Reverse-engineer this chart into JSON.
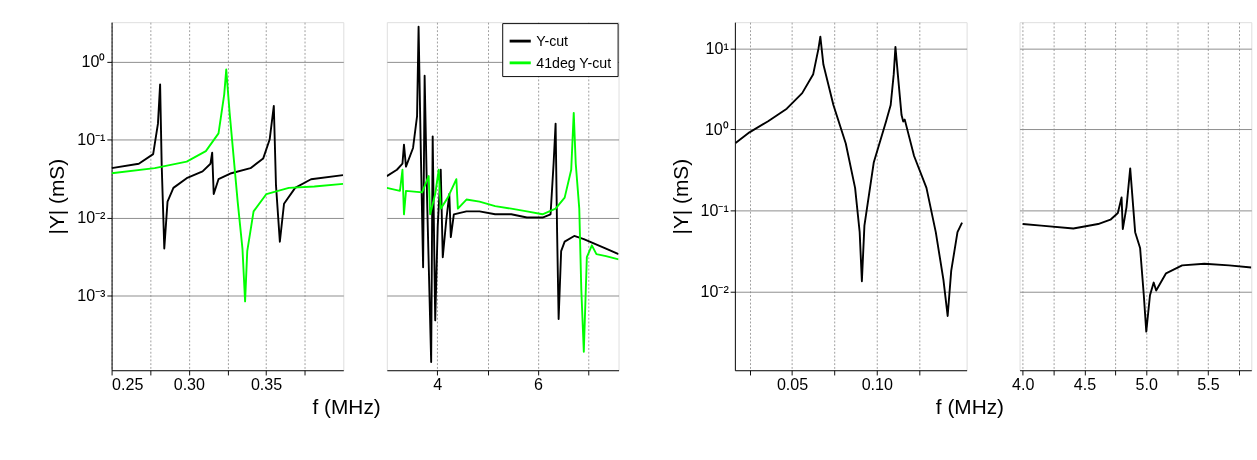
{
  "chart_data": [
    {
      "type": "line",
      "xlabel": "f (MHz)",
      "ylabel": "|Y| (mS)",
      "log": "y",
      "grid": true,
      "xlim": [
        0.25,
        0.4
      ],
      "ylim": [
        0.00011,
        3.2
      ],
      "xticks": [
        0.25,
        {
          "value": 0.275,
          "label": null
        },
        {
          "value": 0.3,
          "label": "0.30"
        },
        {
          "value": 0.325,
          "label": null
        },
        0.35,
        {
          "value": 0.375,
          "label": null
        }
      ],
      "yticks": [
        {
          "value": 0.001,
          "label": "10⁻³"
        },
        {
          "value": 0.01,
          "label": "10⁻²"
        },
        {
          "value": 0.1,
          "label": "10⁻¹"
        },
        {
          "value": 1,
          "label": "10⁰"
        }
      ],
      "series": [
        {
          "color": "#000000",
          "x": [
            0.25,
            0.2676,
            0.2769,
            0.28,
            0.2814,
            0.2824,
            0.2841,
            0.2862,
            0.29,
            0.2986,
            0.3089,
            0.314,
            0.3151,
            0.3161,
            0.3192,
            0.3275,
            0.3399,
            0.3481,
            0.3523,
            0.355,
            0.3564,
            0.3589,
            0.3616,
            0.3688,
            0.3791,
            0.3998
          ],
          "values": [
            0.043,
            0.049,
            0.065,
            0.16,
            0.51,
            0.049,
            0.004,
            0.016,
            0.024,
            0.032,
            0.039,
            0.049,
            0.068,
            0.02,
            0.031,
            0.037,
            0.043,
            0.057,
            0.1,
            0.27,
            0.026,
            0.0049,
            0.015,
            0.024,
            0.031,
            0.035
          ]
        },
        {
          "color": "#00ff00",
          "x": [
            0.25,
            0.2779,
            0.2986,
            0.311,
            0.3192,
            0.3229,
            0.3242,
            0.3264,
            0.3316,
            0.3347,
            0.3364,
            0.3378,
            0.3419,
            0.3502,
            0.3647,
            0.3812,
            0.3998
          ],
          "values": [
            0.037,
            0.043,
            0.052,
            0.071,
            0.12,
            0.38,
            0.79,
            0.22,
            0.016,
            0.004,
            0.00084,
            0.0037,
            0.012,
            0.02,
            0.024,
            0.025,
            0.027
          ]
        }
      ]
    },
    {
      "type": "line",
      "log": "y",
      "grid": true,
      "tick_labels": "x",
      "legend": "top right",
      "xlim": [
        3.0,
        7.6
      ],
      "ylim": [
        0.00011,
        3.2
      ],
      "xticks": [
        4,
        {
          "value": 5,
          "label": null
        },
        6,
        {
          "value": 7,
          "label": null
        }
      ],
      "yticks": [
        0.001,
        0.01,
        0.1,
        1
      ],
      "series": [
        {
          "name": "Y-cut",
          "color": "#000000",
          "x": [
            3.0,
            3.2,
            3.31,
            3.34,
            3.38,
            3.52,
            3.6,
            3.63,
            3.67,
            3.72,
            3.75,
            3.8,
            3.88,
            3.91,
            3.96,
            4.01,
            4.07,
            4.11,
            4.18,
            4.24,
            4.27,
            4.33,
            4.58,
            4.84,
            5.15,
            5.47,
            5.78,
            6.09,
            6.25,
            6.31,
            6.35,
            6.38,
            6.41,
            6.46,
            6.53,
            6.72,
            6.91,
            7.35,
            7.6
          ],
          "values": [
            0.034,
            0.041,
            0.049,
            0.086,
            0.045,
            0.078,
            0.2,
            2.8,
            0.1,
            0.0023,
            0.66,
            0.016,
            0.00014,
            0.11,
            0.00048,
            0.0077,
            0.041,
            0.0031,
            0.0093,
            0.02,
            0.0056,
            0.011,
            0.012,
            0.012,
            0.011,
            0.011,
            0.01,
            0.01,
            0.011,
            0.049,
            0.16,
            0.0064,
            0.0005,
            0.0037,
            0.0049,
            0.0058,
            0.0053,
            0.004,
            0.0034
          ]
        },
        {
          "name": "41deg Y-cut",
          "color": "#00ff00",
          "x": [
            3.0,
            3.26,
            3.31,
            3.34,
            3.38,
            3.7,
            3.83,
            3.86,
            3.96,
            4.03,
            4.07,
            4.21,
            4.38,
            4.41,
            4.58,
            4.84,
            5.15,
            5.47,
            5.78,
            6.09,
            6.35,
            6.53,
            6.66,
            6.71,
            6.75,
            6.82,
            6.86,
            6.91,
            6.97,
            7.07,
            7.16,
            7.35,
            7.6
          ],
          "values": [
            0.024,
            0.022,
            0.041,
            0.011,
            0.022,
            0.021,
            0.034,
            0.011,
            0.02,
            0.041,
            0.013,
            0.018,
            0.031,
            0.013,
            0.017,
            0.016,
            0.014,
            0.013,
            0.012,
            0.011,
            0.013,
            0.018,
            0.041,
            0.22,
            0.049,
            0.013,
            0.0012,
            0.00019,
            0.0031,
            0.0044,
            0.0034,
            0.0032,
            0.0029
          ]
        }
      ]
    },
    {
      "type": "line",
      "xlabel": "f (MHz)",
      "ylabel": "|Y| (mS)",
      "log": "y",
      "grid": true,
      "xlim": [
        0.0163,
        0.153
      ],
      "ylim": [
        0.00107,
        21
      ],
      "xticks": [
        {
          "value": 0.025,
          "label": null
        },
        0.05,
        {
          "value": 0.075,
          "label": null
        },
        {
          "value": 0.1,
          "label": "0.10"
        },
        {
          "value": 0.125,
          "label": null
        }
      ],
      "yticks": [
        {
          "value": 0.01,
          "label": "10⁻²"
        },
        {
          "value": 0.1,
          "label": "10⁻¹"
        },
        {
          "value": 1,
          "label": "10⁰"
        },
        {
          "value": 10,
          "label": "10¹"
        }
      ],
      "series": [
        {
          "color": "#000000",
          "x": [
            0.0167,
            0.0249,
            0.0359,
            0.0469,
            0.056,
            0.0625,
            0.0656,
            0.0667,
            0.0685,
            0.0744,
            0.0817,
            0.0872,
            0.0899,
            0.0912,
            0.0927,
            0.0982,
            0.1055,
            0.1082,
            0.11,
            0.111,
            0.1124,
            0.1146,
            0.1156,
            0.1165,
            0.122,
            0.1293,
            0.1348,
            0.1393,
            0.1418,
            0.1439,
            0.1476,
            0.1503
          ],
          "values": [
            0.68,
            0.92,
            1.26,
            1.8,
            2.8,
            4.8,
            9.9,
            13.9,
            6.3,
            2.0,
            0.67,
            0.19,
            0.054,
            0.0134,
            0.065,
            0.39,
            1.26,
            2.0,
            4.8,
            10.4,
            4.8,
            1.5,
            1.25,
            1.32,
            0.47,
            0.19,
            0.054,
            0.014,
            0.005,
            0.018,
            0.054,
            0.071
          ]
        }
      ]
    },
    {
      "type": "line",
      "log": "y",
      "grid": true,
      "tick_labels": "x",
      "xlim": [
        3.975,
        5.85
      ],
      "ylim": [
        0.00107,
        21
      ],
      "xticks": [
        {
          "value": 4,
          "label": "4.0"
        },
        {
          "value": 4.25,
          "label": null
        },
        4.5,
        {
          "value": 4.75,
          "label": null
        },
        {
          "value": 5,
          "label": "5.0"
        },
        {
          "value": 5.25,
          "label": null
        },
        5.5,
        {
          "value": 5.75,
          "label": null
        }
      ],
      "yticks": [
        0.01,
        0.1,
        1,
        10
      ],
      "series": [
        {
          "color": "#000000",
          "x": [
            4.0,
            4.15,
            4.41,
            4.61,
            4.71,
            4.77,
            4.8,
            4.81,
            4.84,
            4.87,
            4.91,
            4.95,
            4.98,
            5.0,
            5.03,
            5.06,
            5.08,
            5.16,
            5.29,
            5.47,
            5.67,
            5.85
          ],
          "values": [
            0.068,
            0.065,
            0.06,
            0.068,
            0.077,
            0.093,
            0.145,
            0.059,
            0.11,
            0.33,
            0.054,
            0.0345,
            0.009,
            0.0032,
            0.009,
            0.0129,
            0.0103,
            0.0168,
            0.021,
            0.022,
            0.021,
            0.0198
          ]
        }
      ]
    }
  ]
}
